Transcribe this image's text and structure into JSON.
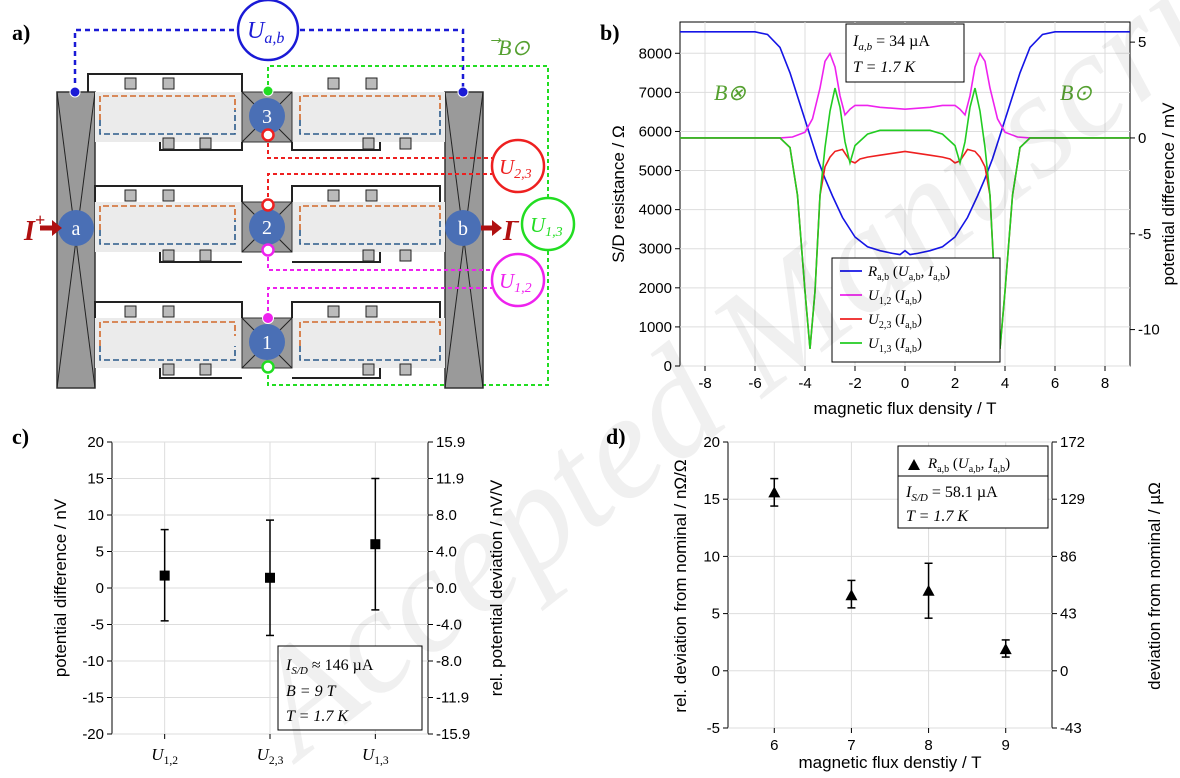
{
  "panel_labels": {
    "a": "a)",
    "b": "b)",
    "c": "c)",
    "d": "d)"
  },
  "watermark": "Accepted Manuscript",
  "diagram": {
    "voltmeters": {
      "ab": "U",
      "ab_sub": "a,b",
      "u23": "U",
      "u23_sub": "2,3",
      "u13": "U",
      "u13_sub": "1,3",
      "u12": "U",
      "u12_sub": "1,2"
    },
    "contacts": {
      "a": "a",
      "b": "b",
      "c1": "1",
      "c2": "2",
      "c3": "3"
    },
    "current_in": "I",
    "current_in_sign": "+",
    "current_out": "I",
    "current_out_sign": "-",
    "field_label": "B",
    "colors": {
      "ab": "#1a1ad6",
      "u23": "#ee2020",
      "u13": "#22dd22",
      "u12": "#ee22ee",
      "contact": "#4a6fb5",
      "orange": "#d2692a",
      "blue_path": "#2a5a8a",
      "arrow": "#b01010"
    }
  },
  "chart_b": {
    "text_box": [
      "I_{a,b} = 34 µA",
      "T = 1.7 K"
    ],
    "box_l1_main": "I",
    "box_l1_sub": "a,b",
    "box_l1_val": " = 34 µA",
    "box_l2": "T = 1.7 K",
    "field_left": "B⊗",
    "field_right": "B⊙"
  },
  "chart_c": {
    "box_l1_main": "I",
    "box_l1_sub": "S/D",
    "box_l1_val": " ≈ 146 µA",
    "box_l2": "B = 9 T",
    "box_l3": "T = 1.7 K"
  },
  "chart_d": {
    "box_l1_main": "I",
    "box_l1_sub": "S/D",
    "box_l1_val": " = 58.1 µA",
    "box_l2": "T = 1.7 K"
  },
  "chart_data": [
    {
      "type": "line",
      "panel": "b",
      "xlabel": "magnetic flux density / T",
      "ylabel": "S/D resistance / Ω",
      "y2label": "potential difference / mV",
      "xlim": [
        -9,
        9
      ],
      "ylim": [
        0,
        8800
      ],
      "y2lim": [
        -11.9,
        6.05
      ],
      "xticks": [
        -8,
        -6,
        -4,
        -2,
        0,
        2,
        4,
        6,
        8
      ],
      "yticks": [
        0,
        1000,
        2000,
        3000,
        4000,
        5000,
        6000,
        7000,
        8000
      ],
      "y2ticks": [
        -10,
        -5,
        0,
        5
      ],
      "grid": true,
      "legend_position": "lower-right",
      "series": [
        {
          "name": "R_{a,b} (U_{a,b}, I_{a,b})",
          "axis": "left",
          "color": "#1515e6",
          "x": [
            -9,
            -6,
            -5.5,
            -5,
            -4.6,
            -4.2,
            -3.8,
            -3.5,
            -3.2,
            -2.9,
            -2.5,
            -2,
            -1.5,
            -1,
            -0.5,
            -0.2,
            0,
            0.2,
            0.5,
            1,
            1.5,
            2,
            2.5,
            2.9,
            3.2,
            3.5,
            3.8,
            4.2,
            4.6,
            5,
            5.5,
            6,
            9
          ],
          "y": [
            8550,
            8550,
            8480,
            8150,
            7500,
            6700,
            5900,
            5300,
            4800,
            4350,
            3800,
            3300,
            3050,
            2950,
            2880,
            2850,
            2950,
            2850,
            2880,
            2950,
            3050,
            3300,
            3800,
            4350,
            4800,
            5300,
            5900,
            6700,
            7500,
            8150,
            8480,
            8550,
            8550
          ]
        },
        {
          "name": "U_{1,2} (I_{a,b})",
          "axis": "right",
          "color": "#ee22ee",
          "x": [
            -9,
            -5,
            -4.5,
            -4,
            -3.7,
            -3.4,
            -3.2,
            -3.0,
            -2.8,
            -2.6,
            -2.4,
            -2.2,
            -2,
            -1.5,
            -1,
            0,
            1,
            1.5,
            2,
            2.2,
            2.4,
            2.6,
            2.8,
            3.0,
            3.2,
            3.4,
            3.7,
            4,
            4.5,
            5,
            9
          ],
          "y": [
            0,
            0,
            0.05,
            0.3,
            1,
            2.6,
            4,
            4.4,
            3.7,
            2.2,
            1.2,
            1.5,
            1.7,
            1.7,
            1.6,
            1.5,
            1.6,
            1.7,
            1.7,
            1.5,
            1.2,
            2.2,
            3.7,
            4.4,
            4,
            2.6,
            1,
            0.3,
            0.05,
            0,
            0
          ]
        },
        {
          "name": "U_{2,3} (I_{a,b})",
          "axis": "right",
          "color": "#ee2020",
          "x": [
            -9,
            -5,
            -4.6,
            -4.3,
            -4.0,
            -3.8,
            -3.6,
            -3.4,
            -3.2,
            -3.0,
            -2.8,
            -2.5,
            -2.2,
            -2,
            -1.8,
            -1.5,
            -1,
            -0.5,
            0,
            0.5,
            1,
            1.5,
            1.8,
            2,
            2.2,
            2.5,
            2.8,
            3.0,
            3.2,
            3.4,
            3.6,
            3.8,
            4.0,
            4.3,
            4.6,
            5,
            9
          ],
          "y": [
            0,
            0,
            -0.5,
            -3,
            -8,
            -11,
            -8,
            -3,
            -1.5,
            -1.0,
            -0.7,
            -0.6,
            -1.2,
            -1.3,
            -1.1,
            -1.0,
            -0.9,
            -0.8,
            -0.7,
            -0.8,
            -0.9,
            -1.0,
            -1.1,
            -1.3,
            -1.2,
            -0.6,
            -0.7,
            -1.0,
            -1.5,
            -3,
            -8,
            -11,
            -8,
            -3,
            -0.5,
            0,
            0
          ]
        },
        {
          "name": "U_{1,3} (I_{a,b})",
          "axis": "right",
          "color": "#22cc22",
          "x": [
            -9,
            -5,
            -4.6,
            -4.3,
            -4.0,
            -3.8,
            -3.6,
            -3.4,
            -3.2,
            -3.0,
            -2.8,
            -2.6,
            -2.4,
            -2.2,
            -2,
            -1.5,
            -1,
            0,
            1,
            1.5,
            2,
            2.2,
            2.4,
            2.6,
            2.8,
            3.0,
            3.2,
            3.4,
            3.6,
            3.8,
            4.0,
            4.3,
            4.6,
            5,
            9
          ],
          "y": [
            0,
            0,
            -0.5,
            -3,
            -8,
            -11,
            -8,
            -3,
            -0.5,
            1.4,
            2.6,
            1.6,
            -0.2,
            -1.3,
            -0.4,
            0.2,
            0.4,
            0.4,
            0.4,
            0.2,
            -0.4,
            -1.3,
            -0.2,
            1.6,
            2.6,
            1.4,
            -0.5,
            -3,
            -8,
            -11,
            -8,
            -3,
            -0.5,
            0,
            0
          ]
        }
      ]
    },
    {
      "type": "scatter",
      "panel": "c",
      "ylabel": "potential difference / nV",
      "y2label": "rel. potential deviation / nV/V",
      "categories": [
        "U_{1,2}",
        "U_{2,3}",
        "U_{1,3}"
      ],
      "ylim": [
        -20,
        20
      ],
      "yticks": [
        -20,
        -15,
        -10,
        -5,
        0,
        5,
        10,
        15,
        20
      ],
      "y2ticks": [
        "-15.9",
        "-11.9",
        "-8.0",
        "-4.0",
        "0.0",
        "4.0",
        "8.0",
        "11.9",
        "15.9"
      ],
      "grid": true,
      "series": [
        {
          "values": [
            1.7,
            1.4,
            6.0
          ],
          "err_low": [
            -4.5,
            -6.5,
            -3.0
          ],
          "err_high": [
            8.0,
            9.3,
            15.0
          ]
        }
      ]
    },
    {
      "type": "scatter",
      "panel": "d",
      "xlabel": "magnetic flux denstiy / T",
      "ylabel": "rel. deviation from nominal / nΩ/Ω",
      "y2label": "deviation from nominal / µΩ",
      "xlim": [
        5.4,
        9.6
      ],
      "ylim": [
        -5,
        20
      ],
      "xticks": [
        6,
        7,
        8,
        9
      ],
      "yticks": [
        -5,
        0,
        5,
        10,
        15,
        20
      ],
      "y2ticks": [
        "-43",
        "0",
        "43",
        "86",
        "129",
        "172"
      ],
      "grid": true,
      "legend_position": "top-right",
      "series": [
        {
          "name": "R_{a,b} (U_{a,b}, I_{a,b})",
          "x": [
            6,
            7,
            8,
            9
          ],
          "y": [
            15.6,
            6.6,
            7.0,
            1.9
          ],
          "err_low": [
            14.4,
            5.5,
            4.6,
            1.2
          ],
          "err_high": [
            16.8,
            7.9,
            9.4,
            2.7
          ]
        }
      ]
    }
  ]
}
